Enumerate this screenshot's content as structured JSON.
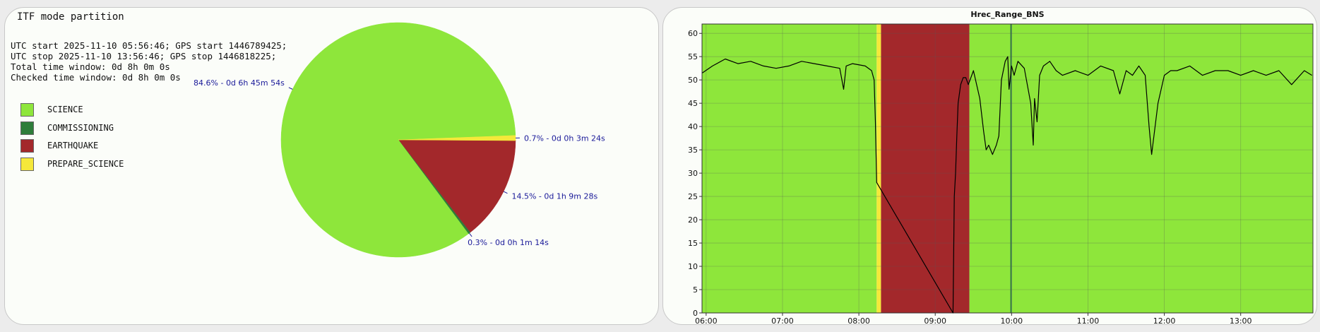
{
  "left_panel": {
    "title": "ITF mode partition",
    "info_lines": [
      "UTC start 2025-11-10 05:56:46; GPS start 1446789425;",
      "UTC stop 2025-11-10 13:56:46; GPS stop 1446818225;",
      "Total time window: 0d 8h 0m 0s",
      "Checked time window: 0d 8h 0m 0s"
    ]
  },
  "chart_data": [
    {
      "type": "pie",
      "title": "ITF mode partition",
      "legend_position": "left",
      "slices": [
        {
          "name": "SCIENCE",
          "percent": 84.6,
          "label": "84.6% - 0d 6h 45m 54s",
          "color": "#8ee63b"
        },
        {
          "name": "COMMISSIONING",
          "percent": 0.3,
          "label": "0.3% - 0d 0h 1m 14s",
          "color": "#2e7d3a"
        },
        {
          "name": "EARTHQUAKE",
          "percent": 14.5,
          "label": "14.5% - 0d 1h 9m 28s",
          "color": "#a3282b"
        },
        {
          "name": "PREPARE_SCIENCE",
          "percent": 0.7,
          "label": "0.7% - 0d 0h 3m 24s",
          "color": "#f5e83a"
        }
      ]
    },
    {
      "type": "line",
      "title": "Hrec_Range_BNS",
      "xlim": [
        "05:56:46",
        "13:56:46"
      ],
      "ylim": [
        0,
        62
      ],
      "x_ticks": [
        "06:00",
        "07:00",
        "08:00",
        "09:00",
        "10:00",
        "11:00",
        "12:00",
        "13:00"
      ],
      "y_ticks": [
        0,
        5,
        10,
        15,
        20,
        25,
        30,
        35,
        40,
        45,
        50,
        55,
        60
      ],
      "grid": true,
      "line_color": "#000000",
      "background_bands": [
        {
          "mode": "SCIENCE",
          "start": "05:56:46",
          "end": "08:14:00",
          "color": "#8ee63b"
        },
        {
          "mode": "PREPARE_SCIENCE",
          "start": "08:14:00",
          "end": "08:17:24",
          "color": "#f5e83a"
        },
        {
          "mode": "EARTHQUAKE",
          "start": "08:17:24",
          "end": "09:26:52",
          "color": "#a3282b"
        },
        {
          "mode": "SCIENCE",
          "start": "09:26:52",
          "end": "09:59:00",
          "color": "#8ee63b"
        },
        {
          "mode": "COMMISSIONING",
          "start": "09:59:00",
          "end": "10:00:14",
          "color": "#2e7d3a"
        },
        {
          "mode": "SCIENCE",
          "start": "10:00:14",
          "end": "13:56:46",
          "color": "#8ee63b"
        }
      ],
      "series": [
        {
          "x": [
            "05:57",
            "06:05",
            "06:15",
            "06:25",
            "06:35",
            "06:45",
            "06:55",
            "07:05",
            "07:15",
            "07:25",
            "07:35",
            "07:45",
            "07:48",
            "07:50",
            "07:55",
            "08:05",
            "08:10",
            "08:12",
            "08:13",
            "08:14",
            "09:14",
            "09:15",
            "09:16",
            "09:17",
            "09:18",
            "09:20",
            "09:22",
            "09:24",
            "09:26",
            "09:30",
            "09:35",
            "09:38",
            "09:40",
            "09:42",
            "09:45",
            "09:48",
            "09:50",
            "09:52",
            "09:55",
            "09:57",
            "09:58",
            "10:00",
            "10:02",
            "10:05",
            "10:10",
            "10:15",
            "10:17",
            "10:18",
            "10:20",
            "10:22",
            "10:25",
            "10:30",
            "10:35",
            "10:40",
            "10:50",
            "11:00",
            "11:10",
            "11:20",
            "11:25",
            "11:30",
            "11:35",
            "11:40",
            "11:45",
            "11:48",
            "11:50",
            "11:55",
            "12:00",
            "12:05",
            "12:10",
            "12:20",
            "12:30",
            "12:40",
            "12:50",
            "13:00",
            "13:10",
            "13:20",
            "13:30",
            "13:40",
            "13:50",
            "13:56"
          ],
          "y": [
            51.5,
            53,
            54.5,
            53.5,
            54,
            53,
            52.5,
            53,
            54,
            53.5,
            53,
            52.5,
            48,
            53,
            53.5,
            53,
            52,
            50,
            41,
            28,
            0,
            25,
            30,
            38,
            45,
            49,
            50.5,
            50.5,
            49,
            52,
            46,
            39,
            35,
            36,
            34,
            36,
            38,
            50,
            54,
            55,
            48,
            53,
            51,
            54,
            52.5,
            45,
            36,
            46,
            41,
            51,
            53,
            54,
            52,
            51,
            52,
            51,
            53,
            52,
            47,
            52,
            51,
            53,
            51,
            40,
            34,
            45,
            51,
            52,
            52,
            53,
            51,
            52,
            52,
            51,
            52,
            51,
            52,
            49,
            52,
            51
          ]
        }
      ]
    }
  ]
}
